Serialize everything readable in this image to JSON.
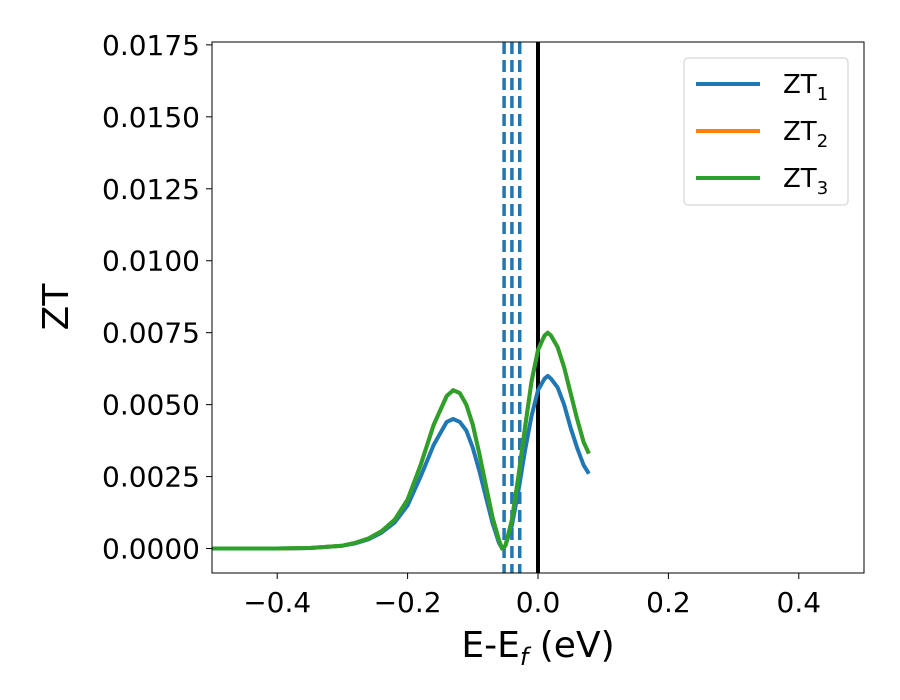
{
  "chart_data": {
    "type": "line",
    "xlabel": "E-E",
    "xlabel_sub": "f",
    "xlabel_unit": " (eV)",
    "ylabel": "ZT",
    "xlim": [
      -0.5,
      0.5
    ],
    "ylim": [
      -0.00085,
      0.0176
    ],
    "x_ticks": [
      -0.4,
      -0.2,
      0.0,
      0.2,
      0.4
    ],
    "x_tick_labels": [
      "−0.4",
      "−0.2",
      "0.0",
      "0.2",
      "0.4"
    ],
    "y_ticks": [
      0.0,
      0.0025,
      0.005,
      0.0075,
      0.01,
      0.0125,
      0.015,
      0.0175
    ],
    "y_tick_labels": [
      "0.0000",
      "0.0025",
      "0.0050",
      "0.0075",
      "0.0100",
      "0.0125",
      "0.0150",
      "0.0175"
    ],
    "grid": false,
    "legend_position": "top-right",
    "series": [
      {
        "name": "ZT",
        "sub": "1",
        "color": "#1f77b4",
        "x": [
          -0.5,
          -0.45,
          -0.4,
          -0.35,
          -0.3,
          -0.28,
          -0.26,
          -0.24,
          -0.22,
          -0.2,
          -0.18,
          -0.16,
          -0.14,
          -0.13,
          -0.12,
          -0.11,
          -0.1,
          -0.09,
          -0.08,
          -0.07,
          -0.06,
          -0.055,
          -0.05,
          -0.04,
          -0.03,
          -0.02,
          -0.01,
          0.0,
          0.01,
          0.015,
          0.02,
          0.03,
          0.04,
          0.05,
          0.06,
          0.07,
          0.078
        ],
        "values": [
          0.0,
          0.0,
          0.0,
          2e-05,
          0.0001,
          0.00018,
          0.00032,
          0.00055,
          0.0009,
          0.0015,
          0.0025,
          0.0036,
          0.0044,
          0.0045,
          0.0044,
          0.0041,
          0.0035,
          0.0027,
          0.0018,
          0.0009,
          0.0002,
          0.0,
          0.0001,
          0.0008,
          0.002,
          0.0034,
          0.0046,
          0.0055,
          0.0059,
          0.006,
          0.0059,
          0.0056,
          0.005,
          0.0042,
          0.0035,
          0.0029,
          0.0026
        ]
      },
      {
        "name": "ZT",
        "sub": "2",
        "color": "#ff7f0e",
        "x": [
          -0.5,
          -0.45,
          -0.4,
          -0.35,
          -0.3,
          -0.28,
          -0.26,
          -0.24,
          -0.22,
          -0.2,
          -0.18,
          -0.16,
          -0.14,
          -0.13,
          -0.12,
          -0.11,
          -0.1,
          -0.09,
          -0.08,
          -0.07,
          -0.06,
          -0.055,
          -0.05,
          -0.04,
          -0.03,
          -0.02,
          -0.01,
          0.0,
          0.01,
          0.015,
          0.02,
          0.03,
          0.04,
          0.05,
          0.06,
          0.07,
          0.078
        ],
        "values": [
          0.0,
          0.0,
          0.0,
          2e-05,
          0.0001,
          0.0002,
          0.00035,
          0.0006,
          0.001,
          0.0017,
          0.0029,
          0.0043,
          0.0053,
          0.0055,
          0.0054,
          0.005,
          0.0043,
          0.0033,
          0.0022,
          0.0011,
          0.0003,
          0.0,
          0.0001,
          0.001,
          0.0025,
          0.0042,
          0.0058,
          0.0069,
          0.0074,
          0.0075,
          0.0074,
          0.007,
          0.0063,
          0.0054,
          0.0045,
          0.0037,
          0.0033
        ]
      },
      {
        "name": "ZT",
        "sub": "3",
        "color": "#2ca02c",
        "x": [
          -0.5,
          -0.45,
          -0.4,
          -0.35,
          -0.3,
          -0.28,
          -0.26,
          -0.24,
          -0.22,
          -0.2,
          -0.18,
          -0.16,
          -0.14,
          -0.13,
          -0.12,
          -0.11,
          -0.1,
          -0.09,
          -0.08,
          -0.07,
          -0.06,
          -0.055,
          -0.05,
          -0.04,
          -0.03,
          -0.02,
          -0.01,
          0.0,
          0.01,
          0.015,
          0.02,
          0.03,
          0.04,
          0.05,
          0.06,
          0.07,
          0.078
        ],
        "values": [
          0.0,
          0.0,
          0.0,
          2e-05,
          0.0001,
          0.0002,
          0.00035,
          0.0006,
          0.001,
          0.0017,
          0.0029,
          0.0043,
          0.0053,
          0.0055,
          0.0054,
          0.005,
          0.0043,
          0.0033,
          0.0022,
          0.0011,
          0.0003,
          0.0,
          0.0001,
          0.001,
          0.0025,
          0.0042,
          0.0058,
          0.0069,
          0.0074,
          0.0075,
          0.0074,
          0.007,
          0.0063,
          0.0054,
          0.0045,
          0.0037,
          0.0033
        ]
      }
    ],
    "vertical_lines": [
      {
        "x": -0.052,
        "style": "dashed",
        "color": "#1f77b4"
      },
      {
        "x": -0.04,
        "style": "dashed",
        "color": "#1f77b4"
      },
      {
        "x": -0.028,
        "style": "dashed",
        "color": "#1f77b4"
      },
      {
        "x": 0.0,
        "style": "solid",
        "color": "#000000"
      }
    ]
  }
}
